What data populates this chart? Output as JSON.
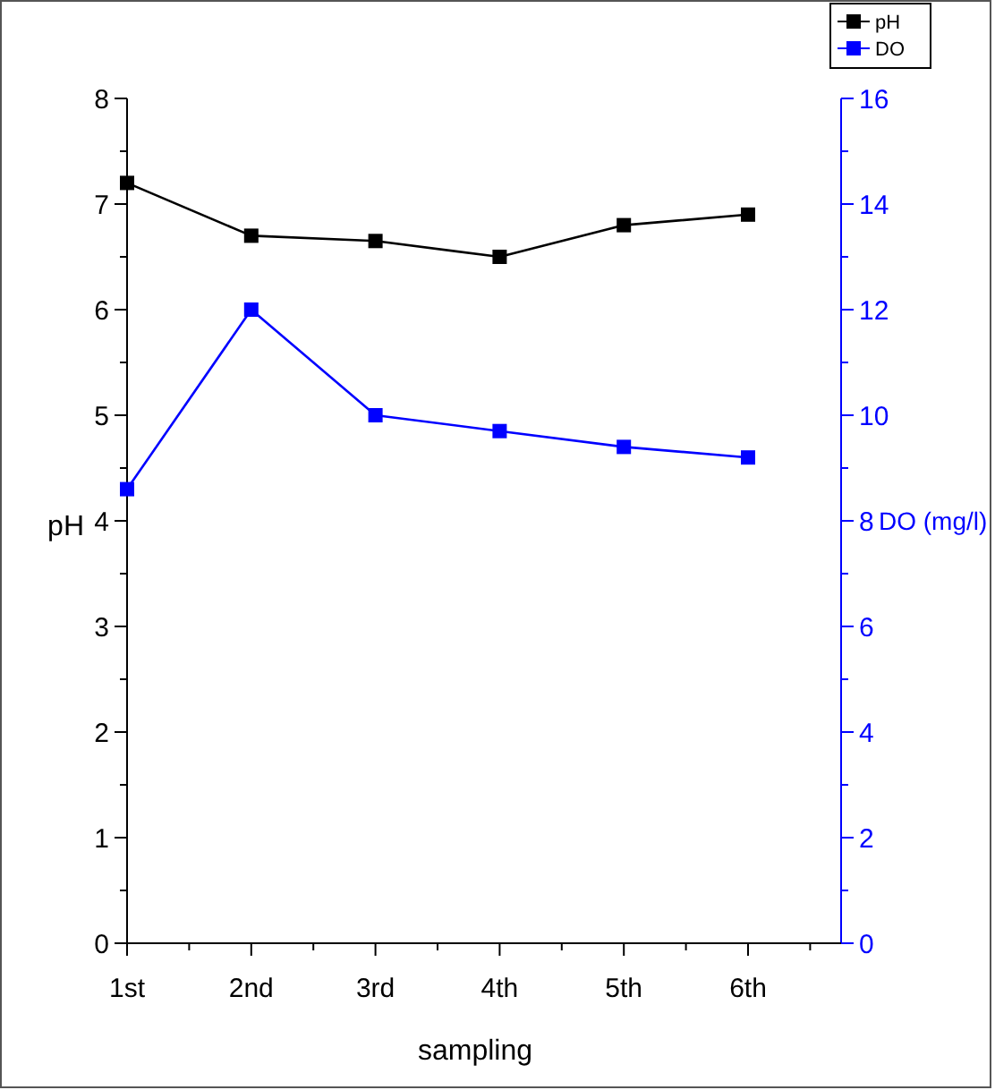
{
  "chart_data": {
    "type": "line",
    "xlabel": "sampling",
    "ylabel": "pH",
    "y2label": "DO (mg/l)",
    "categories": [
      "1st",
      "2nd",
      "3rd",
      "4th",
      "5th",
      "6th"
    ],
    "series": [
      {
        "name": "pH",
        "color": "#000000",
        "values": [
          7.2,
          6.7,
          6.65,
          6.5,
          6.8,
          6.9
        ]
      },
      {
        "name": "DO",
        "color": "#0000ff",
        "axis": "y2",
        "values": [
          8.6,
          12,
          10,
          9.7,
          9.4,
          9.2
        ]
      }
    ],
    "ylim": [
      0,
      8
    ],
    "yticks": [
      0,
      1,
      2,
      3,
      4,
      5,
      6,
      7,
      8
    ],
    "y2lim": [
      0,
      16
    ],
    "y2ticks": [
      0,
      2,
      4,
      6,
      8,
      10,
      12,
      14,
      16
    ],
    "marker": "square",
    "line_style": "solid",
    "legend": "top right",
    "grid": false
  }
}
